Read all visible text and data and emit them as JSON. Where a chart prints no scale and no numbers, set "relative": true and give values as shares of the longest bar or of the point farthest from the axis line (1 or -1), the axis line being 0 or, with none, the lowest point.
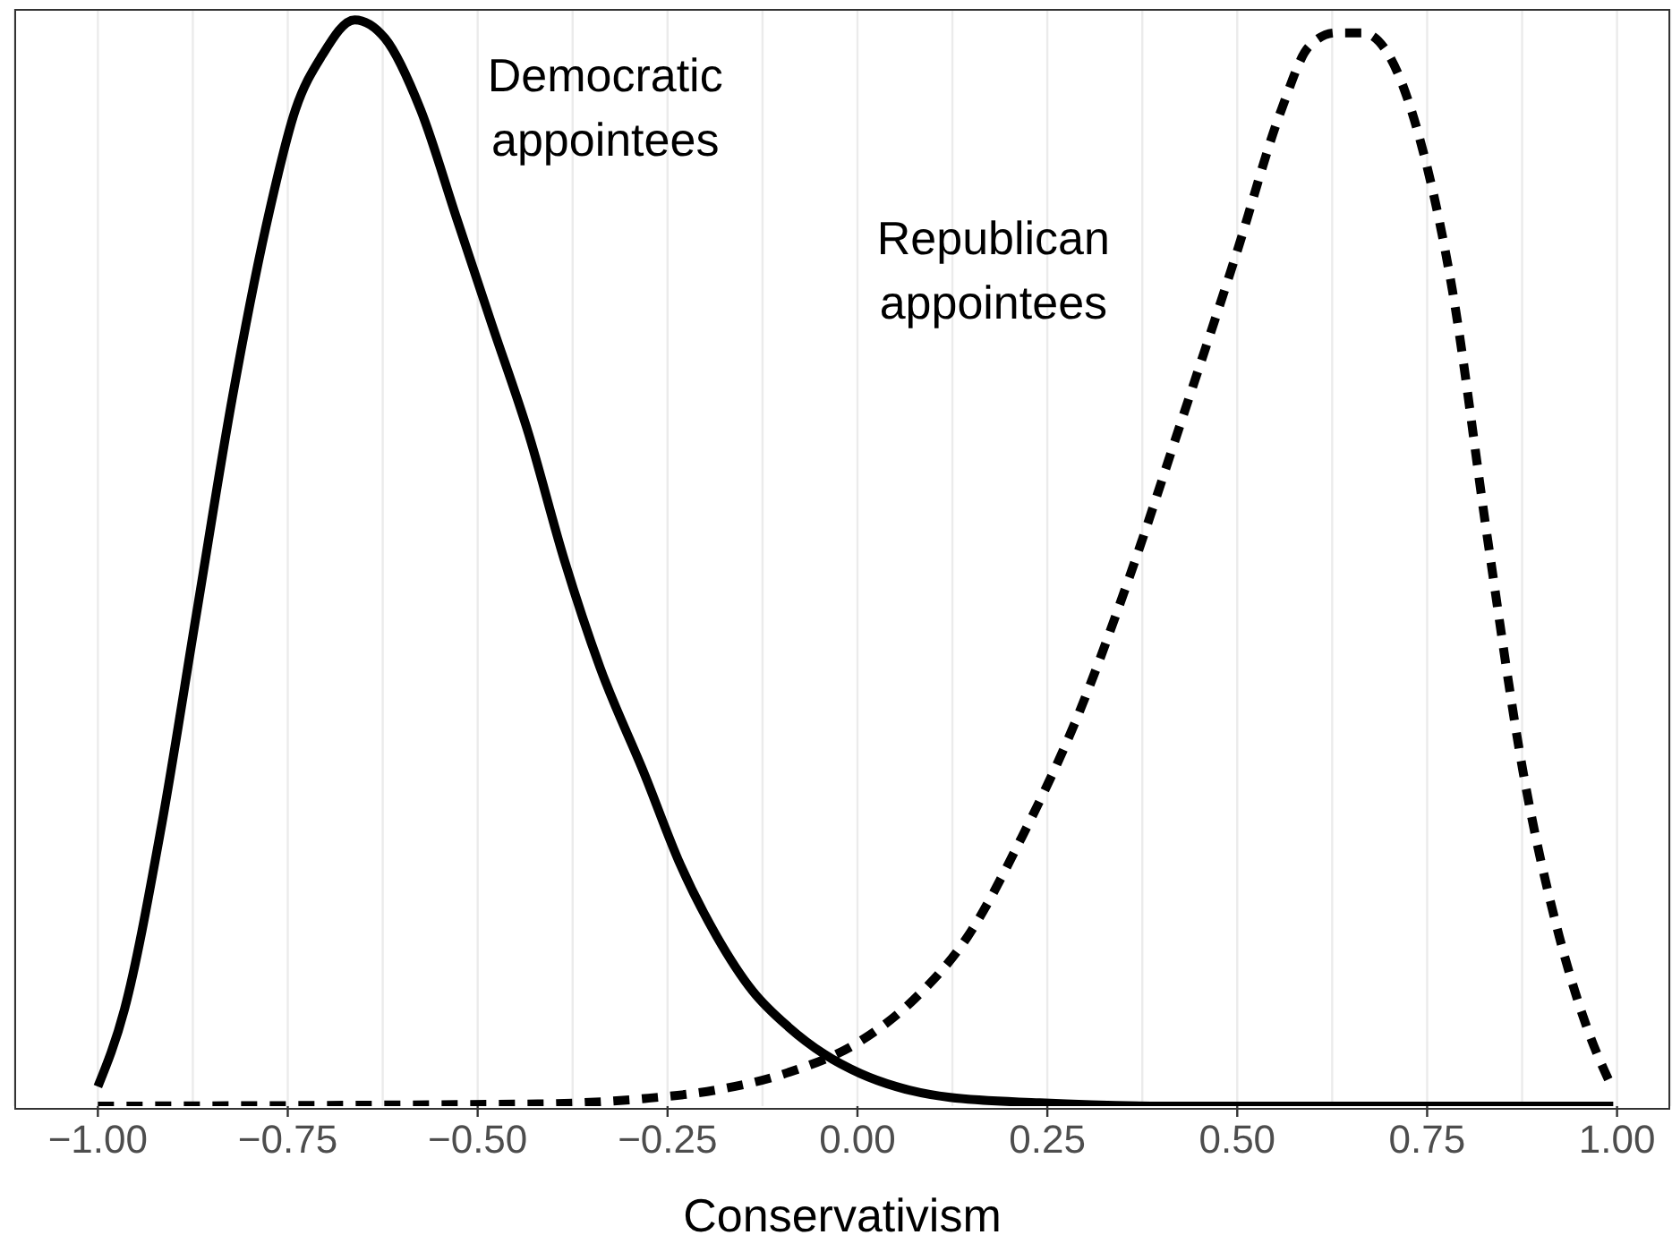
{
  "chart_data": {
    "type": "line",
    "relative": true,
    "xlabel": "Conservativism",
    "xlim": [
      -1.11,
      1.07
    ],
    "xticks": [
      {
        "value": -1,
        "label": "−1.00"
      },
      {
        "value": -0.875,
        "label": null
      },
      {
        "value": -0.75,
        "label": "−0.75"
      },
      {
        "value": -0.625,
        "label": null
      },
      {
        "value": -0.5,
        "label": "−0.50"
      },
      {
        "value": -0.375,
        "label": null
      },
      {
        "value": -0.25,
        "label": "−0.25"
      },
      {
        "value": -0.125,
        "label": null
      },
      {
        "value": 0,
        "label": "0.00"
      },
      {
        "value": 0.125,
        "label": null
      },
      {
        "value": 0.25,
        "label": "0.25"
      },
      {
        "value": 0.375,
        "label": null
      },
      {
        "value": 0.5,
        "label": "0.50"
      },
      {
        "value": 0.625,
        "label": null
      },
      {
        "value": 0.75,
        "label": "0.75"
      },
      {
        "value": 0.875,
        "label": null
      },
      {
        "value": 1,
        "label": "1.00"
      }
    ],
    "grid": "x",
    "series": [
      {
        "name": "Democratic\nappointees",
        "color": "#000000",
        "line_style": "solid",
        "x": [
          -1.0,
          -0.965,
          -0.917,
          -0.87,
          -0.823,
          -0.776,
          -0.74,
          -0.705,
          -0.662,
          -0.622,
          -0.575,
          -0.528,
          -0.481,
          -0.433,
          -0.386,
          -0.339,
          -0.28,
          -0.233,
          -0.185,
          -0.138,
          -0.091,
          -0.044,
          0.004,
          0.051,
          0.122,
          0.24,
          0.405,
          0.995
        ],
        "values": [
          0.018,
          0.089,
          0.255,
          0.454,
          0.652,
          0.818,
          0.917,
          0.967,
          1.0,
          0.983,
          0.917,
          0.818,
          0.719,
          0.619,
          0.503,
          0.404,
          0.305,
          0.222,
          0.156,
          0.106,
          0.073,
          0.048,
          0.03,
          0.018,
          0.008,
          0.003,
          0,
          0
        ]
      },
      {
        "name": "Republican\nappointees",
        "color": "#000000",
        "line_style": "dashed",
        "x": [
          -1.0,
          -0.421,
          -0.28,
          -0.185,
          -0.091,
          0.004,
          0.074,
          0.145,
          0.216,
          0.287,
          0.358,
          0.429,
          0.499,
          0.558,
          0.594,
          0.629,
          0.665,
          0.7,
          0.736,
          0.783,
          0.83,
          0.877,
          0.924,
          0.96,
          0.995
        ],
        "values": [
          0,
          0.002,
          0.007,
          0.015,
          0.031,
          0.06,
          0.098,
          0.156,
          0.247,
          0.354,
          0.487,
          0.636,
          0.785,
          0.917,
          0.975,
          0.988,
          0.988,
          0.967,
          0.901,
          0.752,
          0.52,
          0.305,
          0.156,
          0.073,
          0.015
        ]
      }
    ]
  }
}
